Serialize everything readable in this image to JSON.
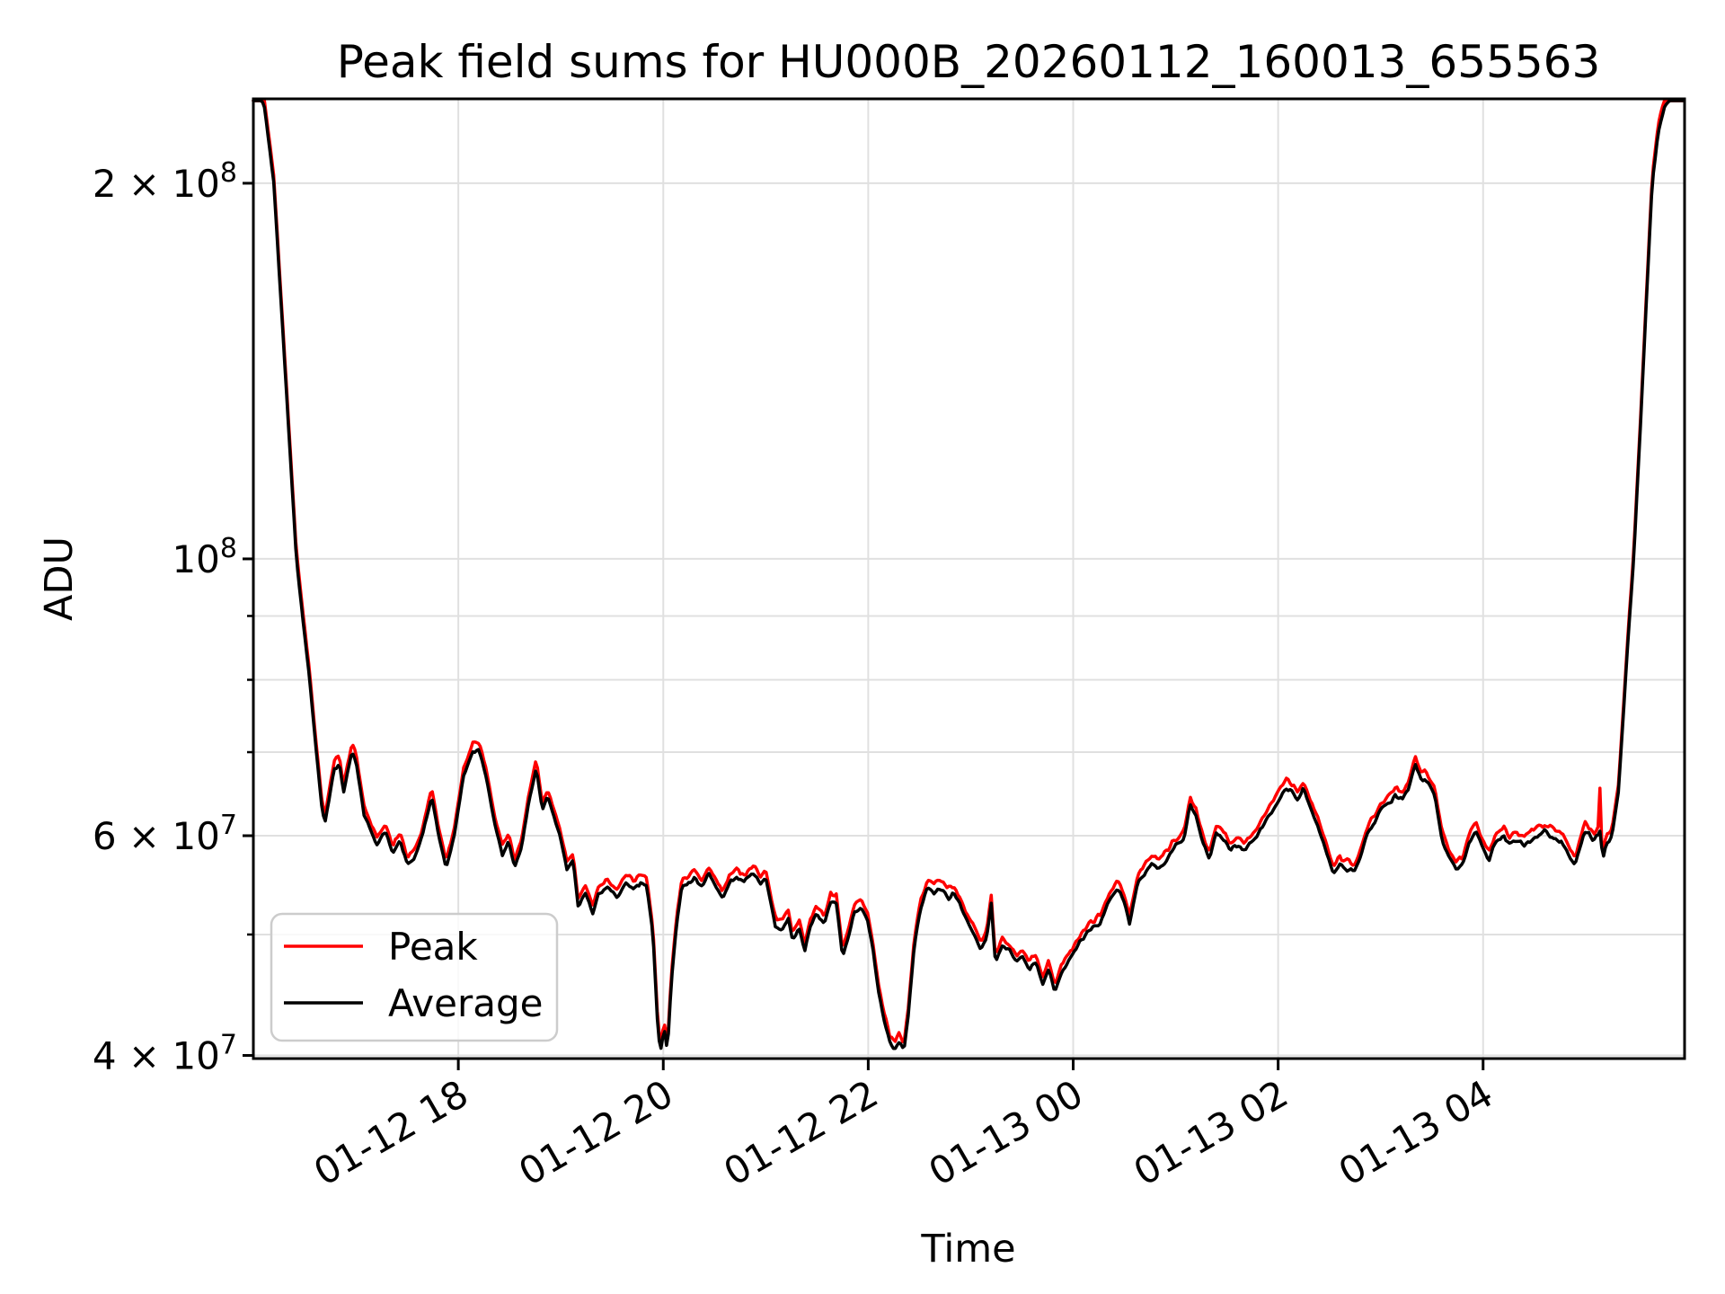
{
  "chart_data": {
    "type": "line",
    "title": "Peak field sums for HU000B_20260112_160013_655563",
    "xlabel": "Time",
    "ylabel": "ADU",
    "grid": true,
    "legend_position": "lower left",
    "x_axis": {
      "unit": "hours since 2026-01-12 00:00",
      "lim": [
        16.0,
        29.966
      ],
      "tick_rotation_deg": 30,
      "ticks": [
        {
          "t": 18,
          "label": "01-12 18"
        },
        {
          "t": 20,
          "label": "01-12 20"
        },
        {
          "t": 22,
          "label": "01-12 22"
        },
        {
          "t": 24,
          "label": "01-13 00"
        },
        {
          "t": 26,
          "label": "01-13 02"
        },
        {
          "t": 28,
          "label": "01-13 04"
        }
      ]
    },
    "y_axis": {
      "scale": "log",
      "unit": "ADU",
      "lim": [
        39770000.0,
        233700000.0
      ],
      "labeled_ticks": [
        {
          "v": 200000000.0,
          "base": "2 × 10",
          "exp": "8"
        },
        {
          "v": 100000000.0,
          "base": "10",
          "exp": "8"
        },
        {
          "v": 60000000.0,
          "base": "6 × 10",
          "exp": "7"
        },
        {
          "v": 40000000.0,
          "base": "4 × 10",
          "exp": "7"
        }
      ],
      "minor_ticks": [
        50000000.0,
        70000000.0,
        80000000.0,
        90000000.0
      ],
      "gridline_values": [
        40000000.0,
        50000000.0,
        60000000.0,
        70000000.0,
        80000000.0,
        90000000.0,
        100000000.0,
        200000000.0
      ]
    },
    "series": [
      {
        "name": "Peak",
        "color": "#ff0000",
        "derived": "Average × 1.013 with slightly larger high-frequency noise",
        "spike": {
          "t": 29.14,
          "v": 65500000.0
        }
      },
      {
        "name": "Average",
        "color": "#000000",
        "points": [
          [
            16.0,
            236000000.0
          ],
          [
            16.1,
            233000000.0
          ],
          [
            16.2,
            200000000.0
          ],
          [
            16.42,
            100000000.0
          ],
          [
            16.48,
            90000000.0
          ],
          [
            16.55,
            80000000.0
          ],
          [
            16.6,
            72000000.0
          ],
          [
            16.67,
            63000000.0
          ],
          [
            16.7,
            61500000.0
          ],
          [
            16.79,
            68000000.0
          ],
          [
            16.84,
            68500000.0
          ],
          [
            16.88,
            65000000.0
          ],
          [
            16.96,
            70000000.0
          ],
          [
            17.0,
            69000000.0
          ],
          [
            17.08,
            62500000.0
          ],
          [
            17.15,
            60500000.0
          ],
          [
            17.21,
            59000000.0
          ],
          [
            17.29,
            60500000.0
          ],
          [
            17.36,
            58000000.0
          ],
          [
            17.43,
            59500000.0
          ],
          [
            17.5,
            57000000.0
          ],
          [
            17.57,
            57500000.0
          ],
          [
            17.65,
            60000000.0
          ],
          [
            17.74,
            64500000.0
          ],
          [
            17.81,
            60000000.0
          ],
          [
            17.88,
            56500000.0
          ],
          [
            17.96,
            60000000.0
          ],
          [
            18.05,
            67000000.0
          ],
          [
            18.14,
            70000000.0
          ],
          [
            18.2,
            70500000.0
          ],
          [
            18.27,
            67000000.0
          ],
          [
            18.36,
            61000000.0
          ],
          [
            18.43,
            58000000.0
          ],
          [
            18.49,
            59500000.0
          ],
          [
            18.55,
            56500000.0
          ],
          [
            18.62,
            59000000.0
          ],
          [
            18.69,
            64000000.0
          ],
          [
            18.76,
            68000000.0
          ],
          [
            18.82,
            63000000.0
          ],
          [
            18.87,
            64500000.0
          ],
          [
            18.91,
            63000000.0
          ],
          [
            18.99,
            60000000.0
          ],
          [
            19.06,
            56500000.0
          ],
          [
            19.12,
            57500000.0
          ],
          [
            19.17,
            52500000.0
          ],
          [
            19.24,
            54000000.0
          ],
          [
            19.31,
            52000000.0
          ],
          [
            19.37,
            54000000.0
          ],
          [
            19.46,
            54500000.0
          ],
          [
            19.55,
            53500000.0
          ],
          [
            19.64,
            55000000.0
          ],
          [
            19.72,
            54500000.0
          ],
          [
            19.78,
            55000000.0
          ],
          [
            19.84,
            54500000.0
          ],
          [
            19.9,
            50000000.0
          ],
          [
            19.94,
            43000000.0
          ],
          [
            19.97,
            40200000.0
          ],
          [
            20.01,
            42000000.0
          ],
          [
            20.04,
            40300000.0
          ],
          [
            20.08,
            46000000.0
          ],
          [
            20.13,
            51000000.0
          ],
          [
            20.18,
            54500000.0
          ],
          [
            20.25,
            55000000.0
          ],
          [
            20.31,
            55500000.0
          ],
          [
            20.38,
            54500000.0
          ],
          [
            20.44,
            56000000.0
          ],
          [
            20.52,
            54500000.0
          ],
          [
            20.58,
            53500000.0
          ],
          [
            20.65,
            55000000.0
          ],
          [
            20.72,
            55500000.0
          ],
          [
            20.79,
            55000000.0
          ],
          [
            20.87,
            56000000.0
          ],
          [
            20.94,
            55000000.0
          ],
          [
            21.0,
            55500000.0
          ],
          [
            21.09,
            51000000.0
          ],
          [
            21.16,
            50500000.0
          ],
          [
            21.22,
            51500000.0
          ],
          [
            21.26,
            49500000.0
          ],
          [
            21.33,
            50500000.0
          ],
          [
            21.38,
            48500000.0
          ],
          [
            21.44,
            51000000.0
          ],
          [
            21.5,
            52000000.0
          ],
          [
            21.57,
            51000000.0
          ],
          [
            21.63,
            53000000.0
          ],
          [
            21.69,
            53000000.0
          ],
          [
            21.75,
            48000000.0
          ],
          [
            21.8,
            49500000.0
          ],
          [
            21.86,
            52000000.0
          ],
          [
            21.92,
            52500000.0
          ],
          [
            21.99,
            51500000.0
          ],
          [
            22.04,
            49000000.0
          ],
          [
            22.1,
            45000000.0
          ],
          [
            22.16,
            42500000.0
          ],
          [
            22.21,
            41000000.0
          ],
          [
            22.26,
            40500000.0
          ],
          [
            22.3,
            41000000.0
          ],
          [
            22.35,
            40500000.0
          ],
          [
            22.39,
            43000000.0
          ],
          [
            22.45,
            49000000.0
          ],
          [
            22.51,
            52500000.0
          ],
          [
            22.58,
            54500000.0
          ],
          [
            22.65,
            54000000.0
          ],
          [
            22.72,
            54500000.0
          ],
          [
            22.78,
            53500000.0
          ],
          [
            22.83,
            54000000.0
          ],
          [
            22.89,
            53000000.0
          ],
          [
            22.95,
            51500000.0
          ],
          [
            23.03,
            50000000.0
          ],
          [
            23.1,
            48500000.0
          ],
          [
            23.16,
            50000000.0
          ],
          [
            23.2,
            53000000.0
          ],
          [
            23.24,
            47500000.0
          ],
          [
            23.31,
            49000000.0
          ],
          [
            23.38,
            48500000.0
          ],
          [
            23.45,
            47500000.0
          ],
          [
            23.51,
            48000000.0
          ],
          [
            23.57,
            47000000.0
          ],
          [
            23.64,
            47500000.0
          ],
          [
            23.7,
            45500000.0
          ],
          [
            23.76,
            47000000.0
          ],
          [
            23.82,
            45000000.0
          ],
          [
            23.88,
            46500000.0
          ],
          [
            23.95,
            47500000.0
          ],
          [
            24.02,
            48500000.0
          ],
          [
            24.08,
            49500000.0
          ],
          [
            24.17,
            50500000.0
          ],
          [
            24.26,
            51000000.0
          ],
          [
            24.34,
            53000000.0
          ],
          [
            24.43,
            54500000.0
          ],
          [
            24.5,
            53000000.0
          ],
          [
            24.55,
            51000000.0
          ],
          [
            24.63,
            55000000.0
          ],
          [
            24.7,
            56000000.0
          ],
          [
            24.77,
            57000000.0
          ],
          [
            24.83,
            56500000.0
          ],
          [
            24.92,
            57500000.0
          ],
          [
            25.0,
            59000000.0
          ],
          [
            25.08,
            59500000.0
          ],
          [
            25.14,
            63500000.0
          ],
          [
            25.2,
            62000000.0
          ],
          [
            25.27,
            59000000.0
          ],
          [
            25.33,
            57500000.0
          ],
          [
            25.4,
            60500000.0
          ],
          [
            25.47,
            59500000.0
          ],
          [
            25.53,
            58500000.0
          ],
          [
            25.6,
            59000000.0
          ],
          [
            25.68,
            58500000.0
          ],
          [
            25.75,
            59500000.0
          ],
          [
            25.82,
            60500000.0
          ],
          [
            25.89,
            62000000.0
          ],
          [
            25.95,
            63000000.0
          ],
          [
            26.02,
            64500000.0
          ],
          [
            26.08,
            65500000.0
          ],
          [
            26.15,
            65000000.0
          ],
          [
            26.19,
            64000000.0
          ],
          [
            26.25,
            65500000.0
          ],
          [
            26.32,
            63000000.0
          ],
          [
            26.39,
            61000000.0
          ],
          [
            26.46,
            58500000.0
          ],
          [
            26.54,
            56000000.0
          ],
          [
            26.6,
            57000000.0
          ],
          [
            26.67,
            56500000.0
          ],
          [
            26.74,
            56000000.0
          ],
          [
            26.81,
            58000000.0
          ],
          [
            26.88,
            60500000.0
          ],
          [
            26.94,
            61500000.0
          ],
          [
            27.0,
            63000000.0
          ],
          [
            27.07,
            63500000.0
          ],
          [
            27.14,
            64500000.0
          ],
          [
            27.21,
            64000000.0
          ],
          [
            27.27,
            65500000.0
          ],
          [
            27.34,
            68500000.0
          ],
          [
            27.4,
            66500000.0
          ],
          [
            27.47,
            66000000.0
          ],
          [
            27.53,
            64500000.0
          ],
          [
            27.6,
            59500000.0
          ],
          [
            27.67,
            57500000.0
          ],
          [
            27.73,
            56500000.0
          ],
          [
            27.8,
            57000000.0
          ],
          [
            27.87,
            59500000.0
          ],
          [
            27.93,
            60500000.0
          ],
          [
            28.0,
            58500000.0
          ],
          [
            28.06,
            57500000.0
          ],
          [
            28.13,
            59500000.0
          ],
          [
            28.2,
            60000000.0
          ],
          [
            28.26,
            59000000.0
          ],
          [
            28.33,
            59500000.0
          ],
          [
            28.39,
            59000000.0
          ],
          [
            28.46,
            59500000.0
          ],
          [
            28.53,
            60000000.0
          ],
          [
            28.59,
            60500000.0
          ],
          [
            28.66,
            60000000.0
          ],
          [
            28.72,
            59500000.0
          ],
          [
            28.79,
            59000000.0
          ],
          [
            28.85,
            57500000.0
          ],
          [
            28.9,
            57000000.0
          ],
          [
            28.95,
            59000000.0
          ],
          [
            28.99,
            60500000.0
          ],
          [
            29.04,
            60000000.0
          ],
          [
            29.08,
            59500000.0
          ],
          [
            29.12,
            60000000.0
          ],
          [
            29.14,
            60500000.0
          ],
          [
            29.17,
            57500000.0
          ],
          [
            29.2,
            59000000.0
          ],
          [
            29.24,
            59500000.0
          ],
          [
            29.27,
            61000000.0
          ],
          [
            29.32,
            65000000.0
          ],
          [
            29.36,
            73000000.0
          ],
          [
            29.41,
            85000000.0
          ],
          [
            29.47,
            100000000.0
          ],
          [
            29.54,
            130000000.0
          ],
          [
            29.6,
            165000000.0
          ],
          [
            29.65,
            200000000.0
          ],
          [
            29.71,
            220000000.0
          ],
          [
            29.77,
            230000000.0
          ],
          [
            29.85,
            236000000.0
          ],
          [
            29.966,
            236000000.0
          ]
        ]
      }
    ]
  },
  "legend": {
    "entries": [
      {
        "label": "Peak",
        "color": "#ff0000"
      },
      {
        "label": "Average",
        "color": "#000000"
      }
    ]
  },
  "style": {
    "background": "#ffffff",
    "grid_color": "#e0e0e0",
    "spine_color": "#000000",
    "legend_border_color": "#cccccc",
    "peak_color": "#ff0000",
    "average_color": "#000000"
  }
}
